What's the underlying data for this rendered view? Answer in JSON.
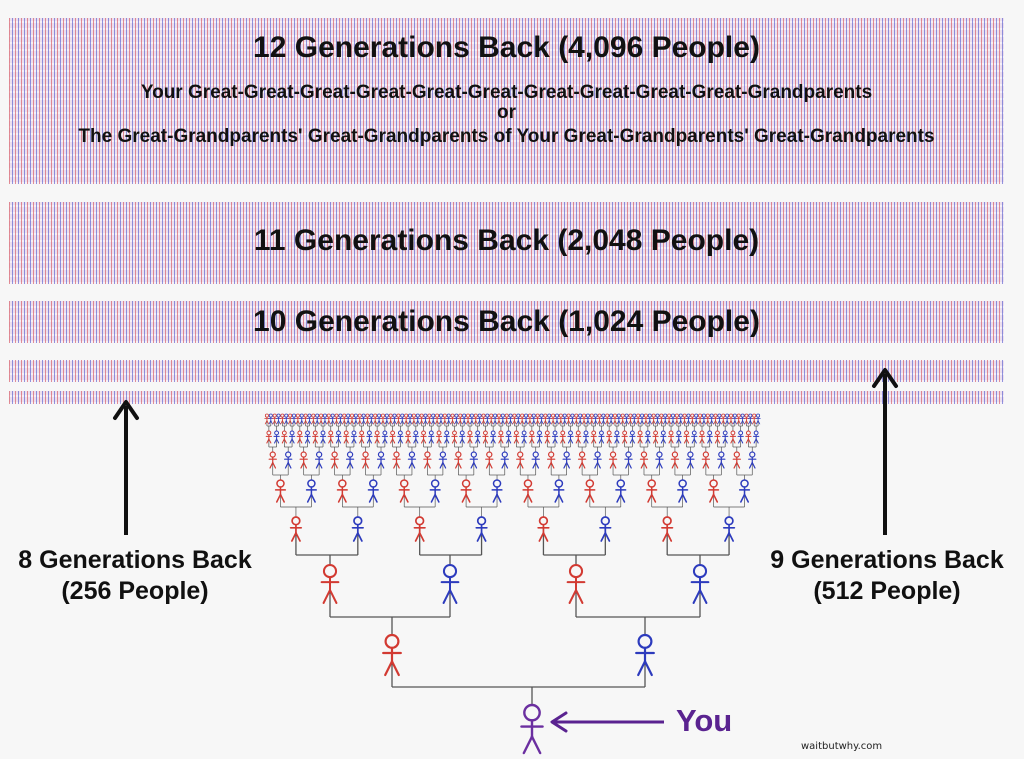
{
  "bands": {
    "gen12": {
      "title": "12 Generations Back (4,096 People)",
      "line1": "Your Great-Great-Great-Great-Great-Great-Great-Great-Great-Great-Grandparents",
      "line2": "or",
      "line3": "The Great-Grandparents' Great-Grandparents of Your Great-Grandparents' Great-Grandparents"
    },
    "gen11": {
      "title": "11 Generations Back (2,048 People)"
    },
    "gen10": {
      "title": "10 Generations Back (1,024 People)"
    }
  },
  "left_label": {
    "line1": "8 Generations Back",
    "line2": "(256 People)"
  },
  "right_label": {
    "line1": "9 Generations Back",
    "line2": "(512 People)"
  },
  "you_label": "You",
  "credit": "waitbutwhy.com",
  "colors": {
    "male": "#2d3bbd",
    "female": "#d23a32",
    "you": "#6b2fa0",
    "text": "#111111",
    "band": "#ecdfee"
  }
}
